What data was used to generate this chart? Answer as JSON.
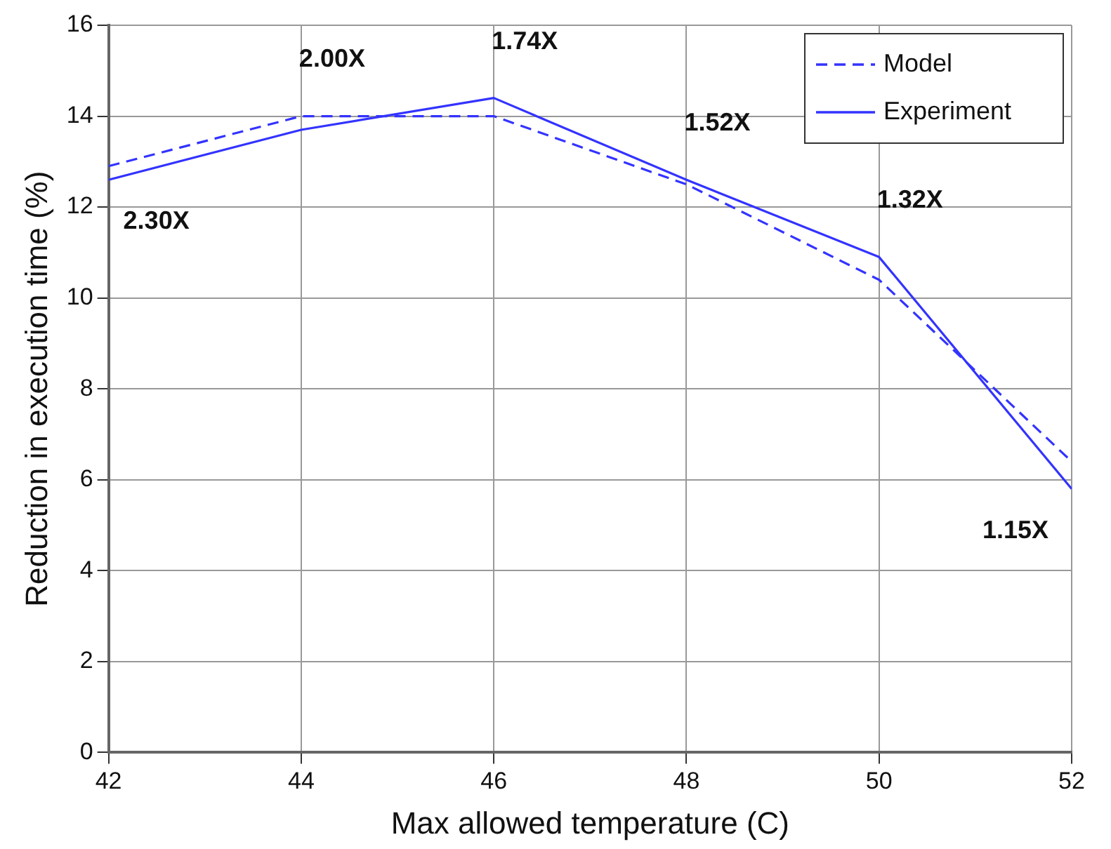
{
  "chart_data": {
    "type": "line",
    "xlabel": "Max allowed temperature (C)",
    "ylabel": "Reduction in execution time (%)",
    "x": [
      42,
      44,
      46,
      48,
      50,
      52
    ],
    "series": [
      {
        "name": "Model",
        "color": "#3333ff",
        "line_style": "dashed",
        "values": [
          12.9,
          14.0,
          14.0,
          12.5,
          10.4,
          6.4
        ]
      },
      {
        "name": "Experiment",
        "color": "#3333ff",
        "line_style": "solid",
        "values": [
          12.6,
          13.7,
          14.4,
          12.6,
          10.9,
          5.8
        ]
      }
    ],
    "xlim": [
      42,
      52
    ],
    "xticks": [
      42,
      44,
      46,
      48,
      50,
      52
    ],
    "ylim": [
      0,
      16
    ],
    "yticks": [
      0,
      2,
      4,
      6,
      8,
      10,
      12,
      14,
      16
    ],
    "grid": true,
    "legend": "top right",
    "marker": "none",
    "annotations": [
      {
        "text": "2.30X",
        "x": 42,
        "y": 12.6
      },
      {
        "text": "2.00X",
        "x": 44,
        "y": 14.0
      },
      {
        "text": "1.74X",
        "x": 46,
        "y": 14.4
      },
      {
        "text": "1.52X",
        "x": 48,
        "y": 12.6
      },
      {
        "text": "1.32X",
        "x": 50,
        "y": 10.9
      },
      {
        "text": "1.15X",
        "x": 52,
        "y": 5.8
      }
    ]
  }
}
